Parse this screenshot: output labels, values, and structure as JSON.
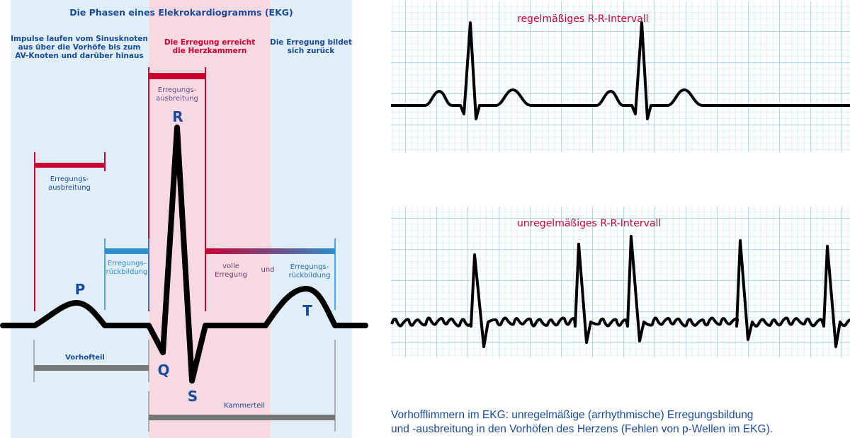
{
  "left_diagram": {
    "title": "Die Phasen eines Elekrokardiogramms (EKG)",
    "phase_1": [
      "Impulse laufen vom Sinusknoten",
      "aus über die Vorhöfe bis zum",
      "AV-Knoten und darüber hinaus"
    ],
    "phase_2": [
      "Die Erregung erreicht",
      "die Herzkammern"
    ],
    "phase_3": [
      "Die Erregung bildet",
      "sich zurück"
    ],
    "p_bracket_label": [
      "Erregungs-",
      "ausbreitung"
    ],
    "p_return_label": [
      "Erregungs-",
      "rückbildung"
    ],
    "qrs_bracket_label": [
      "Erregungs-",
      "ausbreitung"
    ],
    "st_label_1": [
      "volle",
      "Erregung"
    ],
    "st_label_and": "und",
    "st_label_2": [
      "Erregungs-",
      "rückbildung"
    ],
    "waves": {
      "P": "P",
      "Q": "Q",
      "R": "R",
      "S": "S",
      "T": "T"
    },
    "atrial_part": "Vorhofteil",
    "ventricular_part": "Kammerteil"
  },
  "right_panels": {
    "regular_title": "regelmäßiges R-R-Intervall",
    "irregular_title": "unregelmäßiges R-R-Intervall",
    "caption": [
      "Vorhofflimmern im EKG: unregelmäßige (arrhythmische) Erregungsbildung",
      "und -ausbreitung in den Vorhöfen des Herzens (Fehlen von p-Wellen im EKG)."
    ]
  },
  "colors": {
    "blue_bg": "#dfeef7",
    "pink_bg": "#f7d9e1",
    "dark_blue": "#1a4a9a",
    "red": "#cc0033",
    "light_blue": "#2b8fcc",
    "gray": "#777777",
    "grid": "#8cc8e6"
  }
}
